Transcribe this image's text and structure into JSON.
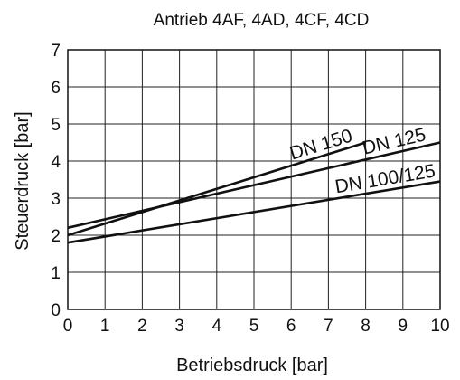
{
  "chart_data": {
    "type": "line",
    "title": "Antrieb 4AF, 4AD, 4CF, 4CD",
    "xlabel": "Betriebsdruck [bar]",
    "ylabel": "Steuerdruck [bar]",
    "xlim": [
      0,
      10
    ],
    "ylim": [
      0,
      7
    ],
    "xticks": [
      0,
      1,
      2,
      3,
      4,
      5,
      6,
      7,
      8,
      9,
      10
    ],
    "yticks": [
      0,
      1,
      2,
      3,
      4,
      5,
      6,
      7
    ],
    "grid": true,
    "legend": "none (series labels on lines)",
    "series": [
      {
        "name": "DN 150",
        "x": [
          0,
          8
        ],
        "y": [
          2.0,
          4.5
        ]
      },
      {
        "name": "DN 125",
        "x": [
          0,
          10
        ],
        "y": [
          2.2,
          4.5
        ]
      },
      {
        "name": "DN 100/125",
        "x": [
          0,
          10
        ],
        "y": [
          1.8,
          3.45
        ]
      }
    ]
  }
}
